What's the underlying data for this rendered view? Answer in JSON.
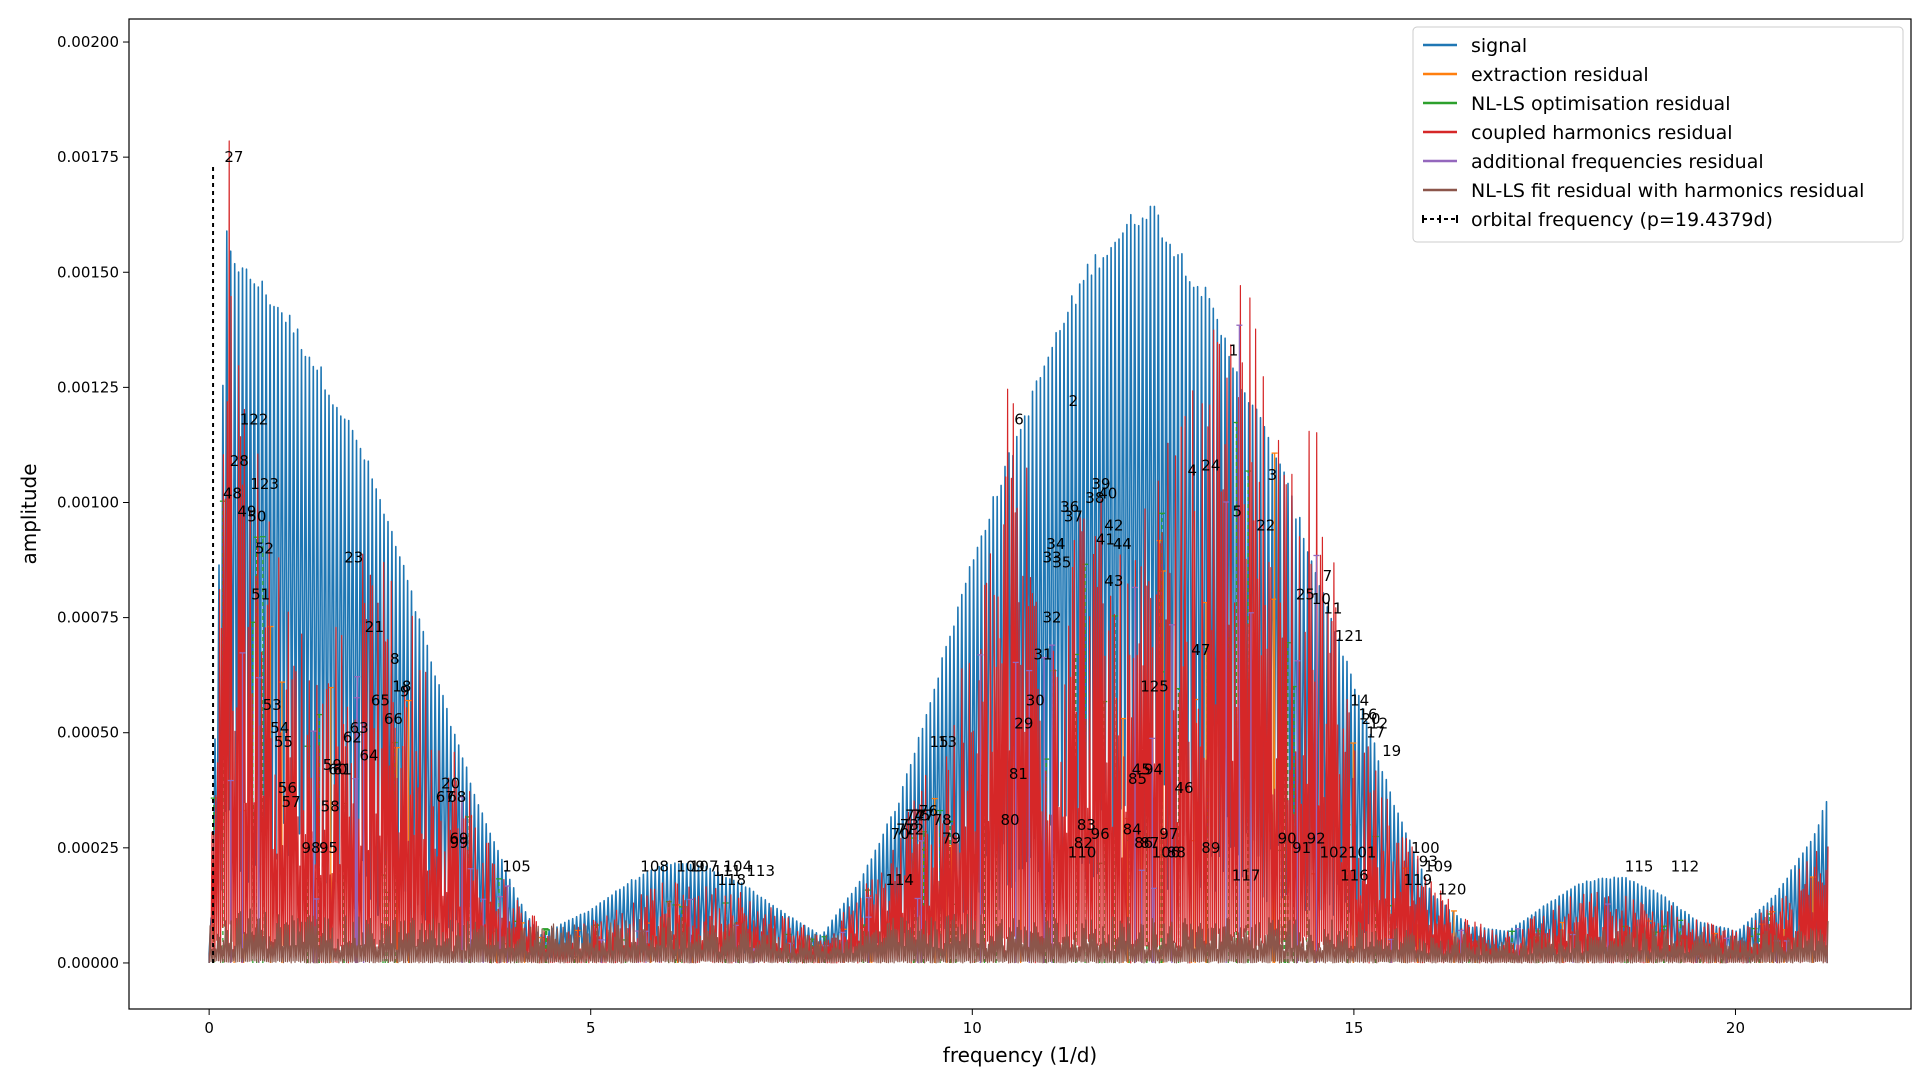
{
  "chart_data": {
    "type": "line",
    "xlabel": "frequency (1/d)",
    "ylabel": "amplitude",
    "xlim": [
      -1.05,
      22.3
    ],
    "ylim": [
      -0.0001,
      0.00205
    ],
    "x_ticks": [
      0,
      5,
      10,
      15,
      20
    ],
    "x_tick_labels": [
      "0",
      "5",
      "10",
      "15",
      "20"
    ],
    "y_ticks": [
      0,
      0.00025,
      0.0005,
      0.00075,
      0.001,
      0.00125,
      0.0015,
      0.00175,
      0.002
    ],
    "y_tick_labels": [
      "0.00000",
      "0.00025",
      "0.00050",
      "0.00075",
      "0.00100",
      "0.00125",
      "0.00150",
      "0.00175",
      "0.00200"
    ],
    "grid": false,
    "legend_position": "top-right",
    "series": [
      {
        "name": "signal",
        "color": "#1f77b4",
        "style": "spectrum",
        "envelope_x": [
          0.0,
          0.2,
          0.4,
          0.6,
          1.0,
          1.5,
          2.0,
          2.5,
          3.0,
          3.5,
          4.0,
          4.3,
          5.0,
          5.5,
          6.0,
          6.5,
          7.0,
          7.5,
          8.0,
          8.5,
          9.0,
          9.5,
          10.0,
          10.5,
          11.0,
          11.5,
          12.0,
          12.3,
          12.6,
          13.0,
          13.5,
          14.0,
          14.5,
          15.0,
          15.5,
          16.0,
          16.5,
          17.0,
          17.5,
          18.0,
          18.5,
          19.0,
          19.5,
          20.0,
          20.5,
          21.0,
          21.2
        ],
        "envelope_y": [
          0.0001,
          0.0016,
          0.00152,
          0.0015,
          0.00142,
          0.00128,
          0.00112,
          0.00088,
          0.0006,
          0.00035,
          0.00015,
          6e-05,
          0.00012,
          0.00018,
          0.00022,
          0.00021,
          0.00017,
          0.00011,
          6e-05,
          0.00018,
          0.00035,
          0.00062,
          0.0009,
          0.00113,
          0.00135,
          0.00153,
          0.00162,
          0.00167,
          0.00158,
          0.00148,
          0.00128,
          0.0011,
          0.00085,
          0.0006,
          0.00035,
          0.00015,
          8e-05,
          7e-05,
          0.00013,
          0.00018,
          0.00019,
          0.00015,
          9e-05,
          7e-05,
          0.00015,
          0.00028,
          0.00037
        ]
      },
      {
        "name": "extraction residual",
        "color": "#ff7f0e",
        "style": "peaks"
      },
      {
        "name": "NL-LS optimisation residual",
        "color": "#2ca02c",
        "style": "peaks"
      },
      {
        "name": "coupled harmonics residual",
        "color": "#d62728",
        "style": "spectrum",
        "envelope_x": [
          0.0,
          0.2,
          0.5,
          1.0,
          1.5,
          2.0,
          2.5,
          3.0,
          3.5,
          4.0,
          4.5,
          5.0,
          6.0,
          7.0,
          8.0,
          8.5,
          9.0,
          9.5,
          10.0,
          10.5,
          11.0,
          11.5,
          12.0,
          12.5,
          13.0,
          13.5,
          14.0,
          14.5,
          15.0,
          15.5,
          16.0,
          16.5,
          17.0,
          18.0,
          19.0,
          19.5,
          20.0,
          20.5,
          21.0,
          21.2
        ],
        "envelope_y": [
          0.0001,
          0.00195,
          0.0013,
          0.0008,
          0.0007,
          0.0009,
          0.00085,
          0.0006,
          0.00035,
          0.00015,
          7e-05,
          0.0001,
          0.00018,
          0.00016,
          6e-05,
          0.00015,
          0.0003,
          0.0005,
          0.0007,
          0.00135,
          0.00095,
          0.0011,
          0.00085,
          0.00113,
          0.0013,
          0.00155,
          0.0013,
          0.00117,
          0.00055,
          0.00033,
          0.00018,
          0.0001,
          8e-05,
          0.00016,
          0.00014,
          0.0001,
          7e-05,
          0.00013,
          0.00025,
          0.0003
        ]
      },
      {
        "name": "additional frequencies residual",
        "color": "#9467bd",
        "style": "peaks"
      },
      {
        "name": "NL-LS fit residual with harmonics residual",
        "color": "#8c564b",
        "style": "spectrum",
        "envelope_x": [
          0.0,
          0.5,
          1.0,
          2.0,
          3.0,
          4.0,
          5.0,
          6.0,
          7.0,
          8.0,
          9.0,
          10.0,
          11.0,
          12.0,
          13.0,
          14.0,
          15.0,
          16.0,
          17.0,
          18.0,
          19.0,
          20.0,
          21.0,
          21.2
        ],
        "envelope_y": [
          0.0001,
          0.00012,
          0.00011,
          0.0001,
          0.0001,
          8e-05,
          9e-05,
          0.0001,
          9e-05,
          6e-05,
          0.0001,
          0.00011,
          0.0001,
          0.0001,
          0.0001,
          0.0001,
          9e-05,
          7e-05,
          6e-05,
          8e-05,
          8e-05,
          6e-05,
          9e-05,
          0.0001
        ]
      },
      {
        "name": "orbital frequency (p=19.4379d)",
        "color": "#000000",
        "style": "vline-dashed",
        "x": 0.0514,
        "y_top": 0.00173
      }
    ],
    "annotations": [
      {
        "text": "27",
        "x": 0.2,
        "y": 0.00175
      },
      {
        "text": "122",
        "x": 0.4,
        "y": 0.00118
      },
      {
        "text": "28",
        "x": 0.27,
        "y": 0.00109
      },
      {
        "text": "48",
        "x": 0.18,
        "y": 0.00102
      },
      {
        "text": "123",
        "x": 0.54,
        "y": 0.00104
      },
      {
        "text": "49",
        "x": 0.37,
        "y": 0.00098
      },
      {
        "text": "50",
        "x": 0.5,
        "y": 0.00097
      },
      {
        "text": "52",
        "x": 0.6,
        "y": 0.0009
      },
      {
        "text": "51",
        "x": 0.55,
        "y": 0.0008
      },
      {
        "text": "23",
        "x": 1.77,
        "y": 0.00088
      },
      {
        "text": "21",
        "x": 2.04,
        "y": 0.00073
      },
      {
        "text": "8",
        "x": 2.37,
        "y": 0.00066
      },
      {
        "text": "18",
        "x": 2.4,
        "y": 0.0006
      },
      {
        "text": "9",
        "x": 2.5,
        "y": 0.00059
      },
      {
        "text": "65",
        "x": 2.12,
        "y": 0.00057
      },
      {
        "text": "53",
        "x": 0.7,
        "y": 0.00056
      },
      {
        "text": "66",
        "x": 2.29,
        "y": 0.00053
      },
      {
        "text": "63",
        "x": 1.84,
        "y": 0.00051
      },
      {
        "text": "54",
        "x": 0.8,
        "y": 0.00051
      },
      {
        "text": "62",
        "x": 1.75,
        "y": 0.00049
      },
      {
        "text": "55",
        "x": 0.85,
        "y": 0.00048
      },
      {
        "text": "64",
        "x": 1.97,
        "y": 0.00045
      },
      {
        "text": "59",
        "x": 1.49,
        "y": 0.00043
      },
      {
        "text": "60",
        "x": 1.56,
        "y": 0.00042
      },
      {
        "text": "61",
        "x": 1.62,
        "y": 0.00042
      },
      {
        "text": "56",
        "x": 0.9,
        "y": 0.00038
      },
      {
        "text": "20",
        "x": 3.04,
        "y": 0.00039
      },
      {
        "text": "67",
        "x": 2.97,
        "y": 0.00036
      },
      {
        "text": "68",
        "x": 3.12,
        "y": 0.00036
      },
      {
        "text": "57",
        "x": 0.95,
        "y": 0.00035
      },
      {
        "text": "58",
        "x": 1.46,
        "y": 0.00034
      },
      {
        "text": "69",
        "x": 3.15,
        "y": 0.00027
      },
      {
        "text": "99",
        "x": 3.15,
        "y": 0.00026
      },
      {
        "text": "98",
        "x": 1.21,
        "y": 0.00025
      },
      {
        "text": "95",
        "x": 1.44,
        "y": 0.00025
      },
      {
        "text": "105",
        "x": 3.84,
        "y": 0.00021
      },
      {
        "text": "108",
        "x": 5.65,
        "y": 0.00021
      },
      {
        "text": "109",
        "x": 6.12,
        "y": 0.00021
      },
      {
        "text": "107",
        "x": 6.3,
        "y": 0.00021
      },
      {
        "text": "104",
        "x": 6.74,
        "y": 0.00021
      },
      {
        "text": "111",
        "x": 6.6,
        "y": 0.0002
      },
      {
        "text": "113",
        "x": 7.04,
        "y": 0.0002
      },
      {
        "text": "118",
        "x": 6.66,
        "y": 0.00018
      },
      {
        "text": "114",
        "x": 8.86,
        "y": 0.00018
      },
      {
        "text": "6",
        "x": 10.55,
        "y": 0.00118
      },
      {
        "text": "2",
        "x": 11.26,
        "y": 0.00122
      },
      {
        "text": "1",
        "x": 13.36,
        "y": 0.00133
      },
      {
        "text": "24",
        "x": 13.0,
        "y": 0.00108
      },
      {
        "text": "3",
        "x": 13.87,
        "y": 0.00106
      },
      {
        "text": "4",
        "x": 12.82,
        "y": 0.00107
      },
      {
        "text": "39",
        "x": 11.56,
        "y": 0.00104
      },
      {
        "text": "40",
        "x": 11.65,
        "y": 0.00102
      },
      {
        "text": "38",
        "x": 11.48,
        "y": 0.00101
      },
      {
        "text": "36",
        "x": 11.15,
        "y": 0.00099
      },
      {
        "text": "37",
        "x": 11.2,
        "y": 0.00097
      },
      {
        "text": "5",
        "x": 13.41,
        "y": 0.00098
      },
      {
        "text": "22",
        "x": 13.72,
        "y": 0.00095
      },
      {
        "text": "42",
        "x": 11.73,
        "y": 0.00095
      },
      {
        "text": "34",
        "x": 10.97,
        "y": 0.00091
      },
      {
        "text": "41",
        "x": 11.62,
        "y": 0.00092
      },
      {
        "text": "44",
        "x": 11.84,
        "y": 0.00091
      },
      {
        "text": "33",
        "x": 10.92,
        "y": 0.00088
      },
      {
        "text": "35",
        "x": 11.05,
        "y": 0.00087
      },
      {
        "text": "7",
        "x": 14.59,
        "y": 0.00084
      },
      {
        "text": "43",
        "x": 11.73,
        "y": 0.00083
      },
      {
        "text": "25",
        "x": 14.24,
        "y": 0.0008
      },
      {
        "text": "10",
        "x": 14.45,
        "y": 0.00079
      },
      {
        "text": "11",
        "x": 14.6,
        "y": 0.00077
      },
      {
        "text": "32",
        "x": 10.92,
        "y": 0.00075
      },
      {
        "text": "121",
        "x": 14.75,
        "y": 0.00071
      },
      {
        "text": "31",
        "x": 10.8,
        "y": 0.00067
      },
      {
        "text": "47",
        "x": 12.87,
        "y": 0.00068
      },
      {
        "text": "125",
        "x": 12.2,
        "y": 0.0006
      },
      {
        "text": "30",
        "x": 10.7,
        "y": 0.00057
      },
      {
        "text": "14",
        "x": 14.95,
        "y": 0.00057
      },
      {
        "text": "16",
        "x": 15.06,
        "y": 0.00054
      },
      {
        "text": "20",
        "x": 15.1,
        "y": 0.00053
      },
      {
        "text": "12",
        "x": 15.2,
        "y": 0.00052
      },
      {
        "text": "29",
        "x": 10.55,
        "y": 0.00052
      },
      {
        "text": "17",
        "x": 15.16,
        "y": 0.0005
      },
      {
        "text": "15",
        "x": 9.44,
        "y": 0.00048
      },
      {
        "text": "13",
        "x": 9.55,
        "y": 0.00048
      },
      {
        "text": "19",
        "x": 15.37,
        "y": 0.00046
      },
      {
        "text": "45",
        "x": 12.09,
        "y": 0.00042
      },
      {
        "text": "94",
        "x": 12.25,
        "y": 0.00042
      },
      {
        "text": "81",
        "x": 10.48,
        "y": 0.00041
      },
      {
        "text": "85",
        "x": 12.04,
        "y": 0.0004
      },
      {
        "text": "46",
        "x": 12.65,
        "y": 0.00038
      },
      {
        "text": "76",
        "x": 9.3,
        "y": 0.00033
      },
      {
        "text": "74",
        "x": 9.12,
        "y": 0.00032
      },
      {
        "text": "75",
        "x": 9.2,
        "y": 0.00032
      },
      {
        "text": "77",
        "x": 9.25,
        "y": 0.00032
      },
      {
        "text": "78",
        "x": 9.48,
        "y": 0.00031
      },
      {
        "text": "80",
        "x": 10.37,
        "y": 0.00031
      },
      {
        "text": "73",
        "x": 9.05,
        "y": 0.0003
      },
      {
        "text": "72",
        "x": 9.12,
        "y": 0.00029
      },
      {
        "text": "83",
        "x": 11.37,
        "y": 0.0003
      },
      {
        "text": "71",
        "x": 9.0,
        "y": 0.00029
      },
      {
        "text": "84",
        "x": 11.97,
        "y": 0.00029
      },
      {
        "text": "96",
        "x": 11.55,
        "y": 0.00028
      },
      {
        "text": "97",
        "x": 12.45,
        "y": 0.00028
      },
      {
        "text": "70",
        "x": 8.93,
        "y": 0.00028
      },
      {
        "text": "79",
        "x": 9.6,
        "y": 0.00027
      },
      {
        "text": "82",
        "x": 11.33,
        "y": 0.00026
      },
      {
        "text": "86",
        "x": 12.12,
        "y": 0.00026
      },
      {
        "text": "87",
        "x": 12.2,
        "y": 0.00026
      },
      {
        "text": "90",
        "x": 14.0,
        "y": 0.00027
      },
      {
        "text": "92",
        "x": 14.38,
        "y": 0.00027
      },
      {
        "text": "91",
        "x": 14.19,
        "y": 0.00025
      },
      {
        "text": "89",
        "x": 13.0,
        "y": 0.00025
      },
      {
        "text": "110",
        "x": 11.25,
        "y": 0.00024
      },
      {
        "text": "106",
        "x": 12.35,
        "y": 0.00024
      },
      {
        "text": "88",
        "x": 12.55,
        "y": 0.00024
      },
      {
        "text": "102",
        "x": 14.55,
        "y": 0.00024
      },
      {
        "text": "101",
        "x": 14.92,
        "y": 0.00024
      },
      {
        "text": "100",
        "x": 15.75,
        "y": 0.00025
      },
      {
        "text": "93",
        "x": 15.85,
        "y": 0.00022
      },
      {
        "text": "109",
        "x": 15.92,
        "y": 0.00021
      },
      {
        "text": "117",
        "x": 13.4,
        "y": 0.00019
      },
      {
        "text": "116",
        "x": 14.82,
        "y": 0.00019
      },
      {
        "text": "119",
        "x": 15.65,
        "y": 0.00018
      },
      {
        "text": "120",
        "x": 16.1,
        "y": 0.00016
      },
      {
        "text": "115",
        "x": 18.55,
        "y": 0.00021
      },
      {
        "text": "112",
        "x": 19.15,
        "y": 0.00021
      }
    ]
  }
}
